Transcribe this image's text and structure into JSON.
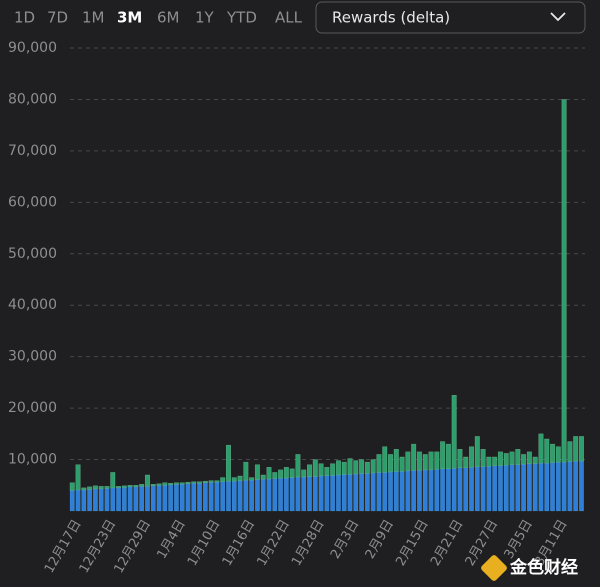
{
  "toolbar": {
    "ranges": [
      "1D",
      "7D",
      "1M",
      "3M",
      "6M",
      "1Y",
      "YTD",
      "ALL"
    ],
    "selected": "3M",
    "dropdown": "Rewards (delta)"
  },
  "watermark": "金色财经",
  "chart_data": {
    "type": "stacked_bar",
    "categories": [
      null,
      "12月17日",
      null,
      null,
      null,
      null,
      null,
      "12月23日",
      null,
      null,
      null,
      null,
      null,
      "12月29日",
      null,
      null,
      null,
      null,
      null,
      "1月4日",
      null,
      null,
      null,
      null,
      null,
      "1月10日",
      null,
      null,
      null,
      null,
      null,
      "1月16日",
      null,
      null,
      null,
      null,
      null,
      "1月22日",
      null,
      null,
      null,
      null,
      null,
      "1月28日",
      null,
      null,
      null,
      null,
      null,
      "2月3日",
      null,
      null,
      null,
      null,
      null,
      "2月9日",
      null,
      null,
      null,
      null,
      null,
      "2月15日",
      null,
      null,
      null,
      null,
      null,
      "2月21日",
      null,
      null,
      null,
      null,
      null,
      "2月27日",
      null,
      null,
      null,
      null,
      null,
      "3月5日",
      null,
      null,
      null,
      null,
      null,
      "3月11日",
      null,
      null,
      null
    ],
    "series": [
      {
        "color": "#2f7fd8",
        "values": [
          4000,
          4100,
          4100,
          4200,
          4300,
          4300,
          4400,
          4500,
          4500,
          4600,
          4700,
          4700,
          4800,
          4800,
          4900,
          5000,
          5000,
          5100,
          5200,
          5200,
          5300,
          5400,
          5400,
          5500,
          5600,
          5600,
          5700,
          5800,
          5800,
          5900,
          6000,
          6000,
          6100,
          6200,
          6200,
          6300,
          6400,
          6400,
          6500,
          6600,
          6600,
          6700,
          6700,
          6800,
          6900,
          6900,
          7000,
          7100,
          7100,
          7200,
          7300,
          7300,
          7400,
          7500,
          7500,
          7600,
          7700,
          7700,
          7800,
          7900,
          7900,
          8000,
          8000,
          8100,
          8200,
          8200,
          8300,
          8400,
          8400,
          8500,
          8600,
          8600,
          8700,
          8800,
          8800,
          8900,
          9000,
          9000,
          9100,
          9200,
          9200,
          9300,
          9300,
          9400,
          9500,
          9500,
          9600,
          9700,
          9700
        ]
      },
      {
        "color": "#2e9e6c",
        "values": [
          1500,
          4900,
          400,
          500,
          600,
          500,
          400,
          3000,
          300,
          300,
          300,
          300,
          400,
          2200,
          300,
          300,
          500,
          300,
          300,
          300,
          300,
          300,
          300,
          300,
          300,
          300,
          800,
          7000,
          700,
          900,
          3500,
          500,
          2900,
          800,
          2300,
          1200,
          1600,
          2100,
          1700,
          4400,
          1400,
          2300,
          3300,
          2400,
          1600,
          2300,
          2800,
          2400,
          3100,
          2600,
          2700,
          2200,
          2600,
          3500,
          5000,
          3400,
          4300,
          2800,
          3700,
          5100,
          3600,
          3000,
          3500,
          3400,
          5300,
          4800,
          14200,
          3600,
          2100,
          4000,
          5900,
          3400,
          1800,
          1700,
          2700,
          2300,
          2500,
          3000,
          1900,
          2300,
          1300,
          5700,
          4700,
          3600,
          3000,
          70500,
          3900,
          4800,
          4800
        ]
      }
    ],
    "ylim": [
      0,
      90000
    ],
    "yticks": [
      {
        "value": 10000,
        "label": "10,000"
      },
      {
        "value": 20000,
        "label": "20,000"
      },
      {
        "value": 30000,
        "label": "30,000"
      },
      {
        "value": 40000,
        "label": "40,000"
      },
      {
        "value": 50000,
        "label": "50,000"
      },
      {
        "value": 60000,
        "label": "60,000"
      },
      {
        "value": 70000,
        "label": "70,000"
      },
      {
        "value": 80000,
        "label": "80,000"
      },
      {
        "value": 90000,
        "label": "90,000"
      }
    ],
    "grid": true
  }
}
